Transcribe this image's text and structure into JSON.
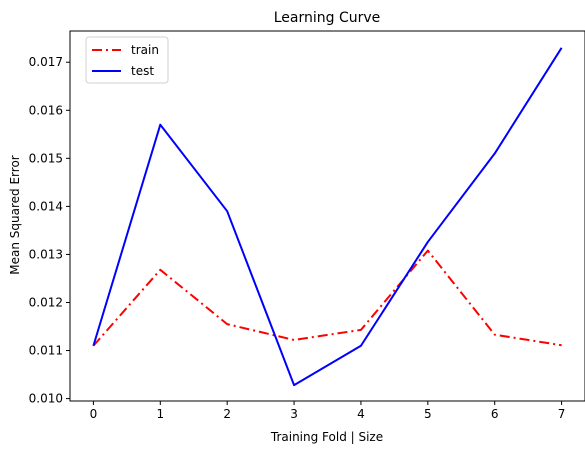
{
  "chart_data": {
    "type": "line",
    "title": "Learning Curve",
    "xlabel": "Training Fold | Size",
    "ylabel": "Mean Squared Error",
    "x": [
      0,
      1,
      2,
      3,
      4,
      5,
      6,
      7
    ],
    "xlim": [
      -0.35,
      7.35
    ],
    "ylim": [
      0.00995,
      0.01765
    ],
    "xticks": [
      0,
      1,
      2,
      3,
      4,
      5,
      6,
      7
    ],
    "xtick_labels": [
      "0",
      "1",
      "2",
      "3",
      "4",
      "5",
      "6",
      "7"
    ],
    "yticks": [
      0.01,
      0.011,
      0.012,
      0.013,
      0.014,
      0.015,
      0.016,
      0.017
    ],
    "ytick_labels": [
      "0.010",
      "0.011",
      "0.012",
      "0.013",
      "0.014",
      "0.015",
      "0.016",
      "0.017"
    ],
    "grid": false,
    "legend_position": "top-left",
    "series": [
      {
        "name": "train",
        "values": [
          0.0111,
          0.01268,
          0.01155,
          0.01122,
          0.01143,
          0.01308,
          0.01133,
          0.01111
        ],
        "color": "#ff0000",
        "style": "dash-dot"
      },
      {
        "name": "test",
        "values": [
          0.0111,
          0.0157,
          0.0139,
          0.01028,
          0.0111,
          0.01326,
          0.0151,
          0.0173
        ],
        "color": "#0000ff",
        "style": "solid"
      }
    ]
  }
}
